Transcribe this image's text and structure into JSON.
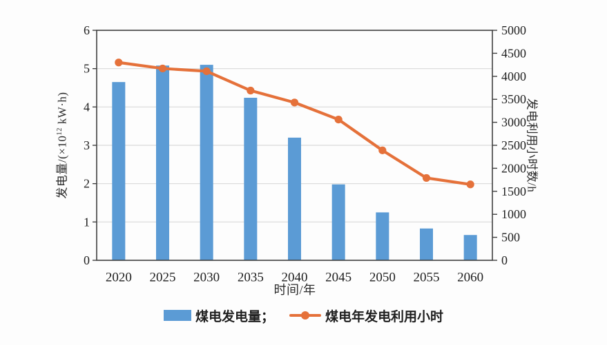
{
  "chart_data": {
    "type": "bar+line combo",
    "categories": [
      "2020",
      "2025",
      "2030",
      "2035",
      "2040",
      "2045",
      "2050",
      "2055",
      "2060"
    ],
    "series": [
      {
        "name": "煤电发电量",
        "type": "bar",
        "axis": "left",
        "color": "#5B9BD5",
        "values": [
          4.65,
          5.08,
          5.1,
          4.24,
          3.2,
          1.98,
          1.25,
          0.83,
          0.66
        ]
      },
      {
        "name": "煤电年发电利用小时",
        "type": "line",
        "axis": "right",
        "color": "#E5713A",
        "values": [
          4300,
          4170,
          4110,
          3690,
          3430,
          3060,
          2390,
          1790,
          1650
        ]
      }
    ],
    "left_axis": {
      "label_prefix": "发电量/(×10",
      "label_sup": "12",
      "label_suffix": " kW·h)",
      "min": 0,
      "max": 6,
      "step": 1,
      "ticks": [
        0,
        1,
        2,
        3,
        4,
        5,
        6
      ]
    },
    "right_axis": {
      "label": "发电利用小时数/h",
      "min": 0,
      "max": 5000,
      "step": 500,
      "ticks": [
        0,
        500,
        1000,
        1500,
        2000,
        2500,
        3000,
        3500,
        4000,
        4500,
        5000
      ]
    },
    "xlabel": "时间/年",
    "grid": "horizontal gridlines at left-axis values 1-5",
    "legend_position": "bottom-center",
    "legend": {
      "items": [
        {
          "label": "煤电发电量；"
        },
        {
          "label": "煤电年发电利用小时"
        }
      ]
    },
    "colors": {
      "bar": "#5B9BD5",
      "line": "#E5713A",
      "axis": "#3F3F3F",
      "grid": "#D8D8D8",
      "text": "#1F1F1F"
    }
  }
}
